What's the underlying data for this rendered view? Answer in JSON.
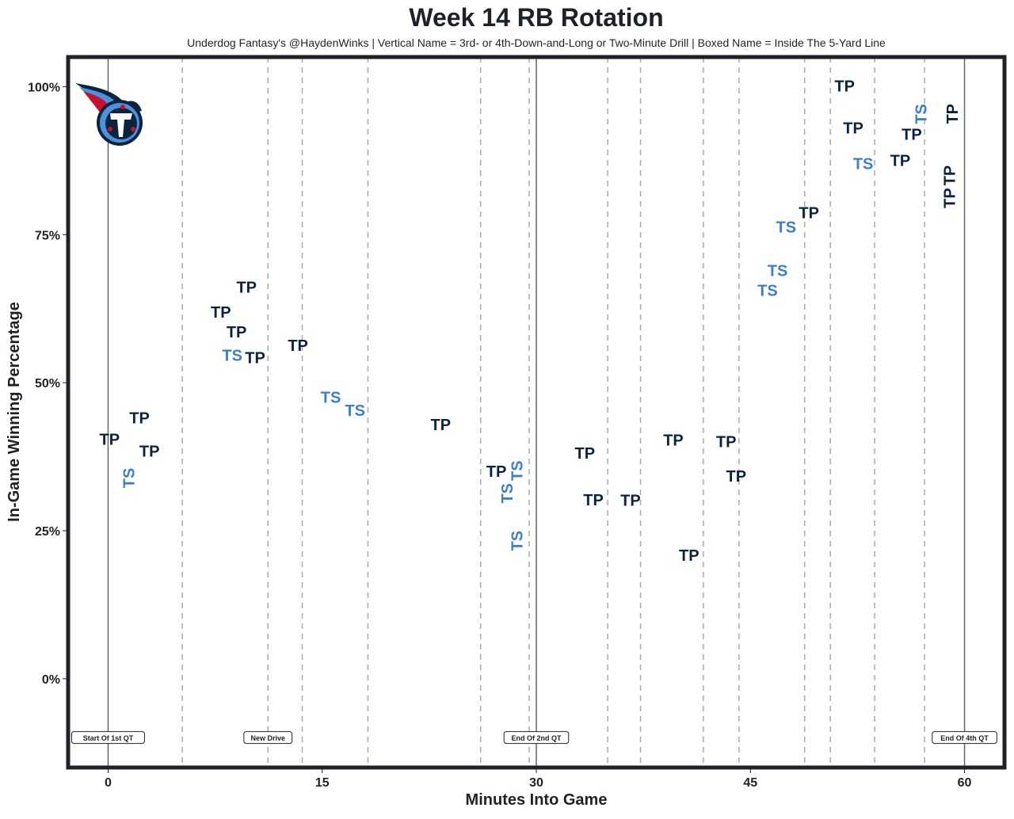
{
  "chart_data": {
    "type": "scatter",
    "title": "Week 14 RB Rotation",
    "subtitle": "Underdog Fantasy's @HaydenWinks | Vertical Name = 3rd- or 4th-Down-and-Long or Two-Minute Drill | Boxed Name = Inside The 5-Yard Line",
    "xlabel": "Minutes Into Game",
    "ylabel": "In-Game Winning Percentage",
    "xlim": [
      -2.8,
      62.8
    ],
    "ylim": [
      -15,
      105
    ],
    "x_ticks": [
      {
        "v": 0,
        "label": "0"
      },
      {
        "v": 15,
        "label": "15"
      },
      {
        "v": 30,
        "label": "30"
      },
      {
        "v": 45,
        "label": "45"
      },
      {
        "v": 60,
        "label": "60"
      }
    ],
    "y_ticks": [
      {
        "v": 0,
        "label": "0%"
      },
      {
        "v": 25,
        "label": "25%"
      },
      {
        "v": 50,
        "label": "50%"
      },
      {
        "v": 75,
        "label": "75%"
      },
      {
        "v": 100,
        "label": "100%"
      }
    ],
    "grid": false,
    "colors": {
      "TP": "#0c2340",
      "TS": "#3d7dd6",
      "frame": "#1e2128"
    },
    "solid_lines": [
      0,
      30,
      60
    ],
    "dashed_lines": [
      5.2,
      11.2,
      13.6,
      18.2,
      26.1,
      29.5,
      35.0,
      37.3,
      41.7,
      44.2,
      48.8,
      50.6,
      53.7,
      57.2
    ],
    "annotations": [
      {
        "x": 0,
        "y": -10,
        "label": "Start Of 1st QT"
      },
      {
        "x": 11.2,
        "y": -10,
        "label": "New Drive"
      },
      {
        "x": 30,
        "y": -10,
        "label": "End Of 2nd QT"
      },
      {
        "x": 60,
        "y": -10,
        "label": "End Of 4th QT"
      }
    ],
    "points": [
      {
        "x": 0.1,
        "y": 40.3,
        "label": "TP",
        "vertical": false
      },
      {
        "x": 1.5,
        "y": 33.9,
        "label": "TS",
        "vertical": true
      },
      {
        "x": 2.2,
        "y": 43.9,
        "label": "TP",
        "vertical": false
      },
      {
        "x": 2.9,
        "y": 38.3,
        "label": "TP",
        "vertical": false
      },
      {
        "x": 7.9,
        "y": 61.8,
        "label": "TP",
        "vertical": false
      },
      {
        "x": 9.0,
        "y": 58.8,
        "label": "TP",
        "vertical": false
      },
      {
        "x": 9.7,
        "y": 66.0,
        "label": "TP",
        "vertical": false
      },
      {
        "x": 8.7,
        "y": 54.5,
        "label": "TS",
        "vertical": false
      },
      {
        "x": 10.3,
        "y": 54.1,
        "label": "TP",
        "vertical": false
      },
      {
        "x": 13.3,
        "y": 56.2,
        "label": "TP",
        "vertical": false
      },
      {
        "x": 15.6,
        "y": 47.4,
        "label": "TS",
        "vertical": false
      },
      {
        "x": 17.3,
        "y": 45.2,
        "label": "TS",
        "vertical": false
      },
      {
        "x": 23.3,
        "y": 42.8,
        "label": "TP",
        "vertical": false
      },
      {
        "x": 27.2,
        "y": 34.9,
        "label": "TP",
        "vertical": false
      },
      {
        "x": 28.0,
        "y": 32.3,
        "label": "TS",
        "vertical": true
      },
      {
        "x": 28.2,
        "y": 33.5,
        "label": "TS",
        "vertical": true
      },
      {
        "x": 28.7,
        "y": 23.3,
        "label": "TS",
        "vertical": true
      },
      {
        "x": 33.4,
        "y": 38.0,
        "label": "TP",
        "vertical": false
      },
      {
        "x": 34.0,
        "y": 30.1,
        "label": "TP",
        "vertical": false
      },
      {
        "x": 36.6,
        "y": 30.0,
        "label": "TP",
        "vertical": false
      },
      {
        "x": 39.6,
        "y": 40.2,
        "label": "TP",
        "vertical": false
      },
      {
        "x": 40.7,
        "y": 20.7,
        "label": "TP",
        "vertical": false
      },
      {
        "x": 43.3,
        "y": 39.9,
        "label": "TP",
        "vertical": false
      },
      {
        "x": 44.0,
        "y": 34.1,
        "label": "TP",
        "vertical": false
      },
      {
        "x": 46.2,
        "y": 65.5,
        "label": "TS",
        "vertical": false
      },
      {
        "x": 46.9,
        "y": 67.1,
        "label": "TS",
        "vertical": false
      },
      {
        "x": 47.5,
        "y": 76.2,
        "label": "TS",
        "vertical": false
      },
      {
        "x": 49.1,
        "y": 78.6,
        "label": "TP",
        "vertical": false
      },
      {
        "x": 51.6,
        "y": 100.0,
        "label": "TP",
        "vertical": false
      },
      {
        "x": 52.2,
        "y": 92.9,
        "label": "TP",
        "vertical": false
      },
      {
        "x": 52.9,
        "y": 86.9,
        "label": "TS",
        "vertical": false
      },
      {
        "x": 55.5,
        "y": 87.4,
        "label": "TP",
        "vertical": false
      },
      {
        "x": 56.3,
        "y": 91.8,
        "label": "TP",
        "vertical": false
      },
      {
        "x": 57.0,
        "y": 93.7,
        "label": "TS",
        "vertical": true
      },
      {
        "x": 59.2,
        "y": 95.4,
        "label": "TP",
        "vertical": true
      },
      {
        "x": 59.0,
        "y": 85.0,
        "label": "TP",
        "vertical": true
      },
      {
        "x": 59.0,
        "y": 84.0,
        "label": "TP",
        "vertical": true
      }
    ]
  }
}
